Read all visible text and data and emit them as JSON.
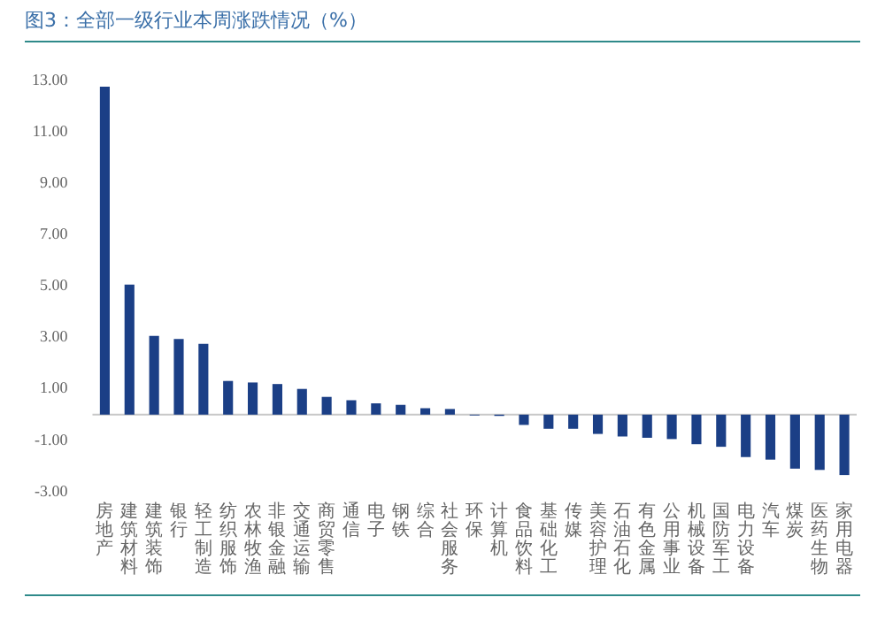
{
  "chart_data": {
    "type": "bar",
    "title": "图3：全部一级行业本周涨跌情况（%）",
    "categories": [
      "房地产",
      "建筑材料",
      "建筑装饰",
      "银行",
      "轻工制造",
      "纺织服饰",
      "农林牧渔",
      "非银金融",
      "交通运输",
      "商贸零售",
      "通信",
      "电子",
      "钢铁",
      "综合",
      "社会服务",
      "环保",
      "计算机",
      "食品饮料",
      "基础化工",
      "传媒",
      "美容护理",
      "石油石化",
      "有色金属",
      "公用事业",
      "机械设备",
      "国防军工",
      "电力设备",
      "汽车",
      "煤炭",
      "医药生物",
      "家用电器"
    ],
    "values": [
      12.75,
      5.06,
      3.06,
      2.94,
      2.75,
      1.31,
      1.25,
      1.19,
      1.0,
      0.69,
      0.56,
      0.44,
      0.38,
      0.25,
      0.22,
      -0.03,
      -0.05,
      -0.4,
      -0.55,
      -0.55,
      -0.75,
      -0.85,
      -0.9,
      -0.95,
      -1.15,
      -1.25,
      -1.65,
      -1.75,
      -2.1,
      -2.15,
      -2.35
    ],
    "color": "#1b3f86",
    "ylim": [
      -3,
      13
    ],
    "yticks": [
      {
        "value": 13,
        "label": "13.00"
      },
      {
        "value": 11,
        "label": "11.00"
      },
      {
        "value": 9,
        "label": "9.00"
      },
      {
        "value": 7,
        "label": "7.00"
      },
      {
        "value": 5,
        "label": "5.00"
      },
      {
        "value": 3,
        "label": "3.00"
      },
      {
        "value": 1,
        "label": "1.00"
      },
      {
        "value": -1,
        "label": "-1.00"
      },
      {
        "value": -3,
        "label": "-3.00"
      }
    ],
    "grid": false
  }
}
